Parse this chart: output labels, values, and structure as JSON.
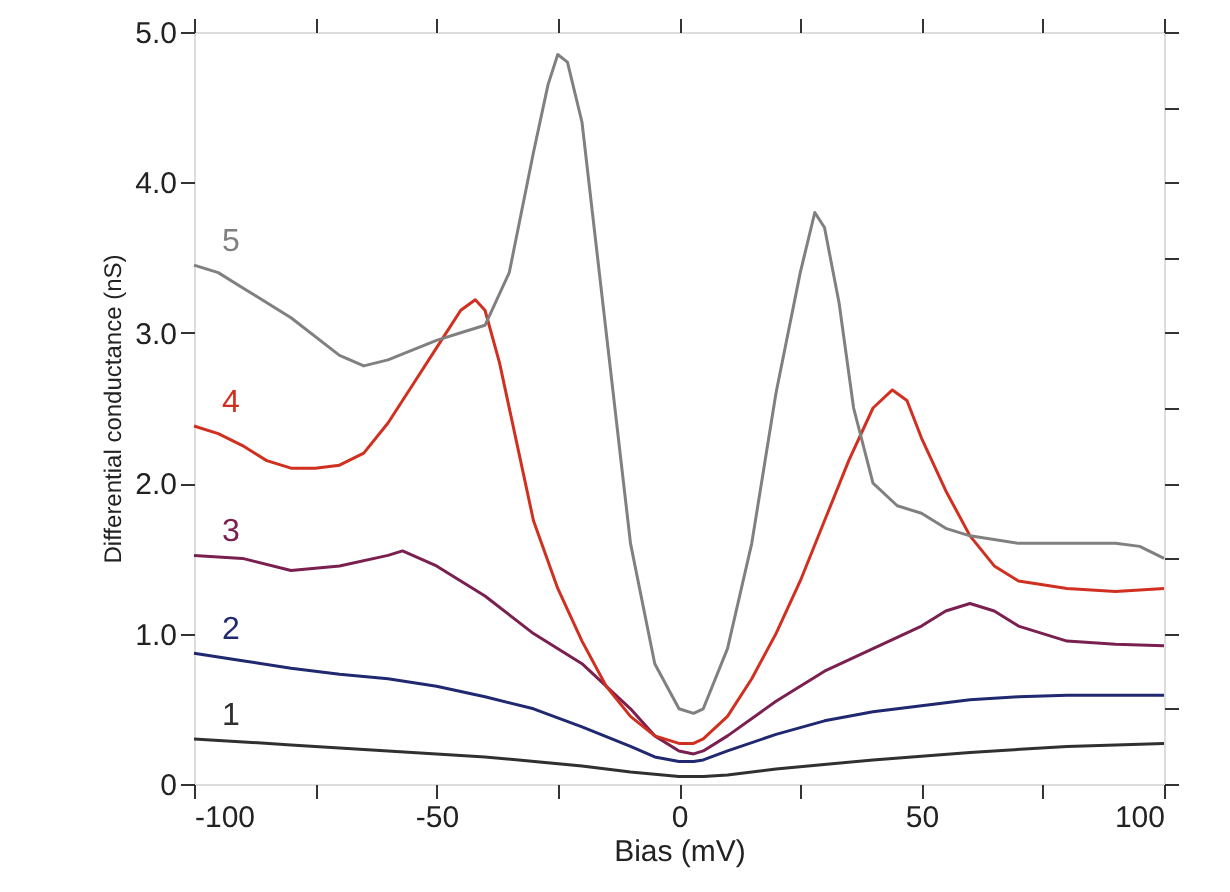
{
  "chart_data": {
    "type": "line",
    "xlabel": "Bias (mV)",
    "ylabel": "Differential conductance (nS)",
    "xlim": [
      -100,
      100
    ],
    "ylim": [
      0,
      5
    ],
    "xticks": [
      -100,
      {
        "value": -75,
        "label": null
      },
      -50,
      {
        "value": -25,
        "label": null
      },
      0,
      {
        "value": 25,
        "label": null
      },
      50,
      {
        "value": 75,
        "label": null
      },
      100
    ],
    "yticks": [
      0,
      {
        "value": 0.5,
        "label": null
      },
      {
        "value": 1,
        "label": "1.0"
      },
      {
        "value": 1.5,
        "label": null
      },
      {
        "value": 2,
        "label": "2.0"
      },
      {
        "value": 2.5,
        "label": null
      },
      {
        "value": 3,
        "label": "3.0"
      },
      {
        "value": 3.5,
        "label": null
      },
      {
        "value": 4,
        "label": "4.0"
      },
      {
        "value": 4.5,
        "label": null
      },
      {
        "value": 5,
        "label": "5.0"
      }
    ],
    "grid": false,
    "marker": "none",
    "line_style": "solid",
    "series": [
      {
        "name": "1",
        "color": "#303030",
        "x": [
          -100,
          -80,
          -60,
          -40,
          -20,
          -10,
          0,
          5,
          10,
          20,
          40,
          60,
          80,
          100
        ],
        "values": [
          0.3,
          0.26,
          0.22,
          0.18,
          0.12,
          0.08,
          0.05,
          0.05,
          0.06,
          0.1,
          0.16,
          0.21,
          0.25,
          0.27
        ]
      },
      {
        "name": "2",
        "color": "#202870",
        "x": [
          -100,
          -90,
          -80,
          -70,
          -60,
          -50,
          -40,
          -30,
          -20,
          -10,
          -5,
          0,
          3,
          5,
          10,
          20,
          30,
          40,
          50,
          60,
          70,
          80,
          100
        ],
        "values": [
          0.87,
          0.82,
          0.77,
          0.73,
          0.7,
          0.65,
          0.58,
          0.5,
          0.38,
          0.25,
          0.18,
          0.15,
          0.15,
          0.16,
          0.22,
          0.33,
          0.42,
          0.48,
          0.52,
          0.56,
          0.58,
          0.59,
          0.59
        ]
      },
      {
        "name": "3",
        "color": "#7a2050",
        "x": [
          -100,
          -90,
          -80,
          -70,
          -60,
          -57,
          -50,
          -40,
          -30,
          -20,
          -10,
          -5,
          0,
          3,
          5,
          10,
          20,
          30,
          40,
          50,
          55,
          60,
          65,
          70,
          80,
          90,
          100
        ],
        "values": [
          1.52,
          1.5,
          1.42,
          1.45,
          1.52,
          1.55,
          1.45,
          1.25,
          1.0,
          0.8,
          0.5,
          0.32,
          0.22,
          0.2,
          0.22,
          0.32,
          0.55,
          0.75,
          0.9,
          1.05,
          1.15,
          1.2,
          1.15,
          1.05,
          0.95,
          0.93,
          0.92
        ]
      },
      {
        "name": "4",
        "color": "#d03020",
        "x": [
          -100,
          -95,
          -90,
          -85,
          -80,
          -75,
          -70,
          -65,
          -60,
          -55,
          -50,
          -45,
          -42,
          -40,
          -37,
          -33,
          -30,
          -25,
          -20,
          -15,
          -10,
          -5,
          0,
          3,
          5,
          10,
          15,
          20,
          25,
          30,
          35,
          40,
          44,
          47,
          50,
          55,
          60,
          65,
          70,
          80,
          90,
          100
        ],
        "values": [
          2.38,
          2.33,
          2.25,
          2.15,
          2.1,
          2.1,
          2.12,
          2.2,
          2.4,
          2.65,
          2.9,
          3.15,
          3.22,
          3.15,
          2.8,
          2.2,
          1.75,
          1.3,
          0.95,
          0.65,
          0.45,
          0.32,
          0.27,
          0.27,
          0.3,
          0.45,
          0.7,
          1.0,
          1.35,
          1.75,
          2.15,
          2.5,
          2.62,
          2.55,
          2.3,
          1.95,
          1.65,
          1.45,
          1.35,
          1.3,
          1.28,
          1.3
        ]
      },
      {
        "name": "5",
        "color": "#808080",
        "x": [
          -100,
          -95,
          -90,
          -80,
          -70,
          -65,
          -60,
          -50,
          -45,
          -40,
          -35,
          -30,
          -27,
          -25,
          -23,
          -20,
          -15,
          -10,
          -5,
          0,
          3,
          5,
          10,
          15,
          20,
          25,
          28,
          30,
          33,
          36,
          40,
          45,
          50,
          55,
          60,
          70,
          80,
          90,
          95,
          100
        ],
        "values": [
          3.45,
          3.4,
          3.3,
          3.1,
          2.85,
          2.78,
          2.82,
          2.95,
          3.0,
          3.05,
          3.4,
          4.2,
          4.65,
          4.85,
          4.8,
          4.4,
          3.0,
          1.6,
          0.8,
          0.5,
          0.47,
          0.5,
          0.9,
          1.6,
          2.6,
          3.4,
          3.8,
          3.7,
          3.2,
          2.5,
          2.0,
          1.85,
          1.8,
          1.7,
          1.65,
          1.6,
          1.6,
          1.6,
          1.58,
          1.5
        ]
      }
    ]
  }
}
